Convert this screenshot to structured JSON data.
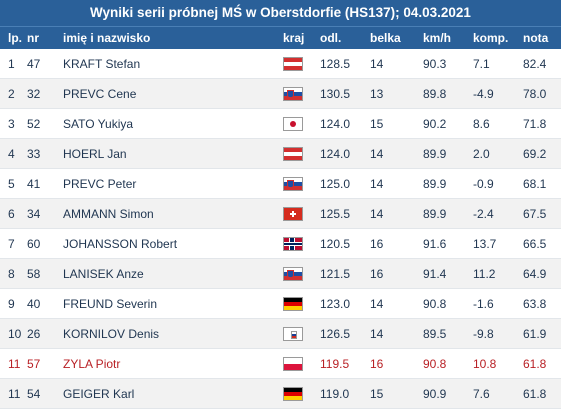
{
  "title": "Wyniki serii próbnej MŚ w Oberstdorfie (HS137); 04.03.2021",
  "headers": {
    "lp": "lp.",
    "nr": "nr",
    "name": "imię i nazwisko",
    "country": "kraj",
    "distance": "odl.",
    "gate": "belka",
    "speed": "km/h",
    "comp": "komp.",
    "score": "nota"
  },
  "colors": {
    "header_bg": "#2a6099",
    "highlight_text": "#b81f24"
  },
  "rows": [
    {
      "lp": "1",
      "nr": "47",
      "name": "KRAFT Stefan",
      "flag": "austria-flag-icon",
      "distance": "128.5",
      "gate": "14",
      "speed": "90.3",
      "comp": "7.1",
      "score": "82.4"
    },
    {
      "lp": "2",
      "nr": "32",
      "name": "PREVC Cene",
      "flag": "slovenia-flag-icon",
      "distance": "130.5",
      "gate": "13",
      "speed": "89.8",
      "comp": "-4.9",
      "score": "78.0"
    },
    {
      "lp": "3",
      "nr": "52",
      "name": "SATO Yukiya",
      "flag": "japan-flag-icon",
      "distance": "124.0",
      "gate": "15",
      "speed": "90.2",
      "comp": "8.6",
      "score": "71.8"
    },
    {
      "lp": "4",
      "nr": "33",
      "name": "HOERL Jan",
      "flag": "austria-flag-icon",
      "distance": "124.0",
      "gate": "14",
      "speed": "89.9",
      "comp": "2.0",
      "score": "69.2"
    },
    {
      "lp": "5",
      "nr": "41",
      "name": "PREVC Peter",
      "flag": "slovenia-flag-icon",
      "distance": "125.0",
      "gate": "14",
      "speed": "89.9",
      "comp": "-0.9",
      "score": "68.1"
    },
    {
      "lp": "6",
      "nr": "34",
      "name": "AMMANN Simon",
      "flag": "switzerland-flag-icon",
      "distance": "125.5",
      "gate": "14",
      "speed": "89.9",
      "comp": "-2.4",
      "score": "67.5"
    },
    {
      "lp": "7",
      "nr": "60",
      "name": "JOHANSSON Robert",
      "flag": "norway-flag-icon",
      "distance": "120.5",
      "gate": "16",
      "speed": "91.6",
      "comp": "13.7",
      "score": "66.5"
    },
    {
      "lp": "8",
      "nr": "58",
      "name": "LANISEK Anze",
      "flag": "slovenia-flag-icon",
      "distance": "121.5",
      "gate": "16",
      "speed": "91.4",
      "comp": "11.2",
      "score": "64.9"
    },
    {
      "lp": "9",
      "nr": "40",
      "name": "FREUND Severin",
      "flag": "germany-flag-icon",
      "distance": "123.0",
      "gate": "14",
      "speed": "90.8",
      "comp": "-1.6",
      "score": "63.8"
    },
    {
      "lp": "10",
      "nr": "26",
      "name": "KORNILOV Denis",
      "flag": "russia-flag-icon",
      "distance": "126.5",
      "gate": "14",
      "speed": "89.5",
      "comp": "-9.8",
      "score": "61.9"
    },
    {
      "lp": "11",
      "nr": "57",
      "name": "ZYLA Piotr",
      "flag": "poland-flag-icon",
      "distance": "119.5",
      "gate": "16",
      "speed": "90.8",
      "comp": "10.8",
      "score": "61.8",
      "highlight": true
    },
    {
      "lp": "11",
      "nr": "54",
      "name": "GEIGER Karl",
      "flag": "germany-flag-icon",
      "distance": "119.0",
      "gate": "15",
      "speed": "90.9",
      "comp": "7.6",
      "score": "61.8"
    }
  ]
}
